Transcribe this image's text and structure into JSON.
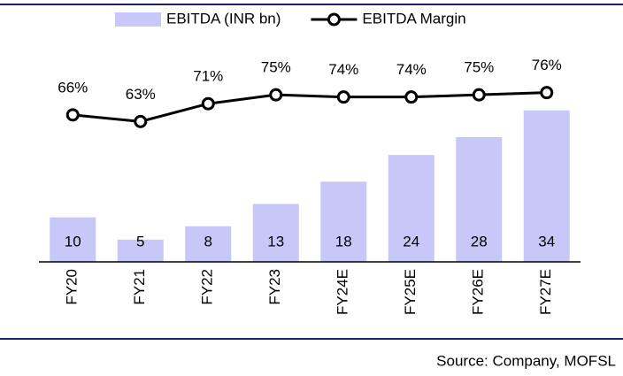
{
  "chart_data": {
    "type": "combo",
    "categories": [
      "FY20",
      "FY21",
      "FY22",
      "FY23",
      "FY24E",
      "FY25E",
      "FY26E",
      "FY27E"
    ],
    "series": [
      {
        "name": "EBITDA (INR bn)",
        "type": "bar",
        "color": "#c8c8f8",
        "values": [
          10,
          5,
          8,
          13,
          18,
          24,
          28,
          34
        ]
      },
      {
        "name": "EBITDA Margin",
        "type": "line",
        "axis": "y2",
        "color": "#000000",
        "values": [
          66,
          63,
          71,
          75,
          74,
          74,
          75,
          76
        ],
        "value_labels": [
          "66%",
          "63%",
          "71%",
          "75%",
          "74%",
          "74%",
          "75%",
          "76%"
        ]
      }
    ],
    "ylim": [
      0,
      56
    ],
    "y2lim": [
      0,
      112
    ],
    "source": "Source: Company, MOFSL"
  }
}
